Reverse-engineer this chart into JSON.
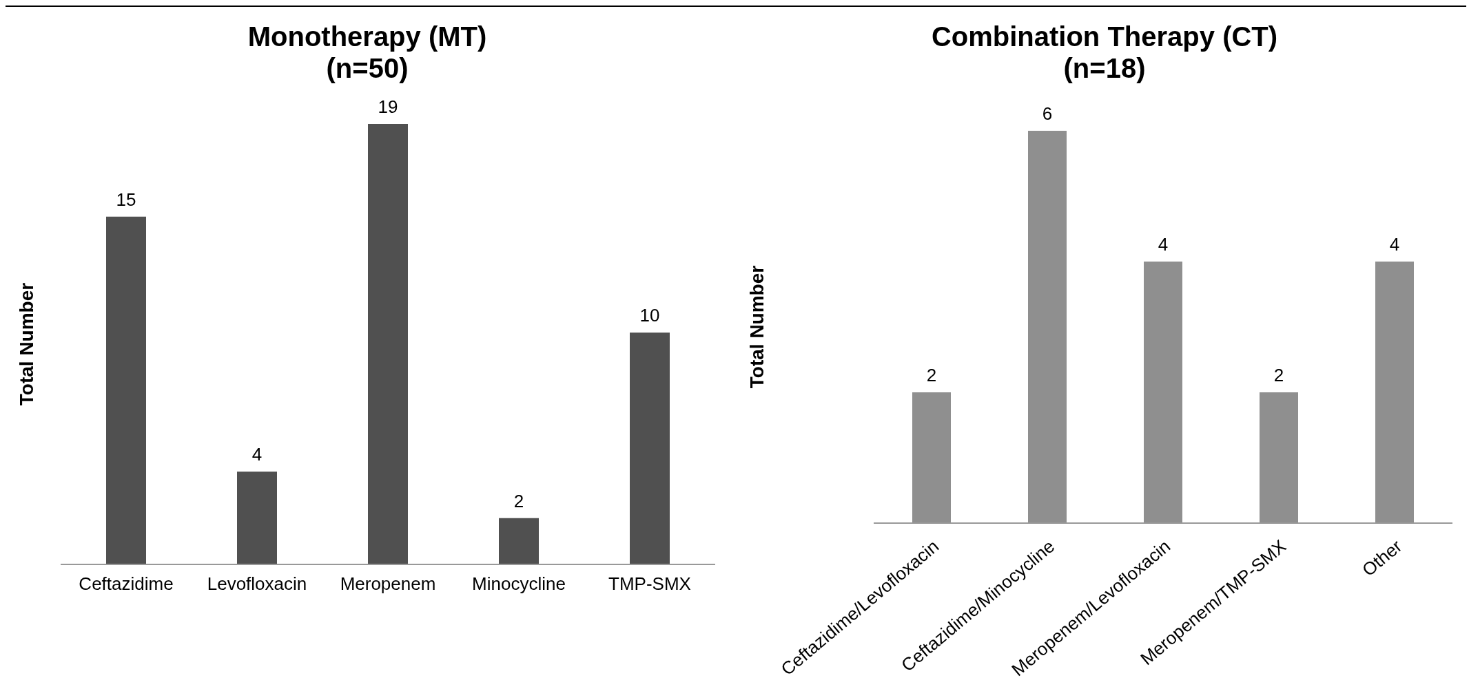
{
  "chart_data": [
    {
      "type": "bar",
      "title": "Monotherapy (MT)\n(n=50)",
      "ylabel": "Total Number",
      "categories": [
        "Ceftazidime",
        "Levofloxacin",
        "Meropenem",
        "Minocycline",
        "TMP-SMX"
      ],
      "values": [
        15,
        4,
        19,
        2,
        10
      ],
      "color": "#505050",
      "data_labels": true,
      "grid": false,
      "legend": false
    },
    {
      "type": "bar",
      "title": "Combination Therapy (CT)\n(n=18)",
      "ylabel": "Total Number",
      "categories": [
        "Ceftazidime/Levofloxacin",
        "Ceftazidime/Minocycline",
        "Meropenem/Levofloxacin",
        "Meropenem/TMP-SMX",
        "Other"
      ],
      "values": [
        2,
        6,
        4,
        2,
        4
      ],
      "color": "#8f8f8f",
      "data_labels": true,
      "grid": false,
      "legend": false
    }
  ]
}
